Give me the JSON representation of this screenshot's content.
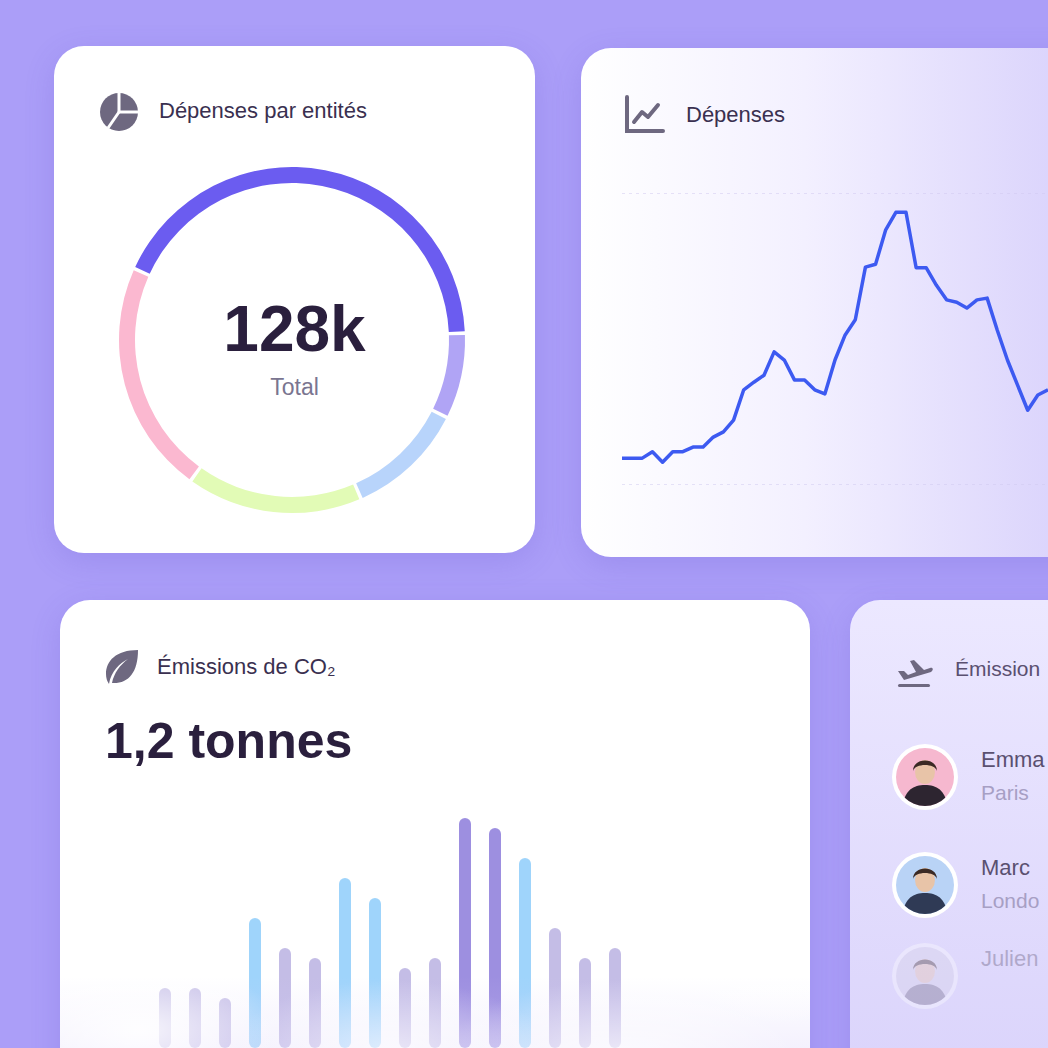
{
  "chart_data": [
    {
      "type": "pie",
      "title": "Dépenses par entités",
      "center_label": "128k",
      "center_sublabel": "Total",
      "values": [
        55,
        10,
        14,
        21,
        28
      ],
      "colors": [
        "#6b5cf0",
        "#b0a4f5",
        "#b8d4fb",
        "#e2fbb6",
        "#fbb8d0"
      ]
    },
    {
      "type": "line",
      "title": "Dépenses",
      "categories": [
        null,
        null,
        null,
        null,
        null,
        null,
        null,
        null,
        null,
        null,
        null,
        null,
        null,
        null,
        null,
        null,
        null,
        null,
        null,
        null,
        null,
        null,
        null,
        null,
        null,
        null,
        null,
        null,
        null,
        null,
        null,
        null,
        null,
        null,
        null,
        null,
        null,
        null,
        null,
        null,
        null,
        null,
        null
      ],
      "values": [
        0.46,
        0.46,
        0.46,
        0.57,
        0.39,
        0.57,
        0.57,
        0.65,
        0.65,
        0.82,
        0.91,
        1.11,
        1.63,
        1.76,
        1.88,
        2.28,
        2.14,
        1.8,
        1.8,
        1.63,
        1.56,
        2.14,
        2.57,
        2.83,
        3.73,
        3.78,
        4.37,
        4.67,
        4.67,
        3.72,
        3.72,
        3.42,
        3.17,
        3.13,
        3.03,
        3.17,
        3.2,
        2.65,
        2.14,
        1.71,
        1.28,
        1.54,
        1.63
      ],
      "color": "#3d5af1",
      "ylim": [
        0,
        5
      ],
      "yticks": [
        0,
        1,
        2,
        3,
        4,
        5
      ],
      "grid": true,
      "tick_labels": false
    },
    {
      "type": "bar",
      "title": "Émissions de CO₂",
      "subtitle": "1,2 tonnes",
      "categories": [
        null,
        null,
        null,
        null,
        null,
        null,
        null,
        null,
        null,
        null,
        null,
        null,
        null,
        null,
        null,
        null
      ],
      "values": [
        6,
        6,
        5,
        13,
        10,
        9,
        17,
        15,
        8,
        9,
        23,
        22,
        19,
        12,
        9,
        10
      ],
      "colors": [
        "#c4bde6",
        "#c4bde6",
        "#c4bde6",
        "#9fd4fb",
        "#c4bde6",
        "#c4bde6",
        "#9fd4fb",
        "#9fd4fb",
        "#c4bde6",
        "#c4bde6",
        "#9d8fe0",
        "#9d8fe0",
        "#9fd4fb",
        "#c4bde6",
        "#c4bde6",
        "#c4bde6"
      ],
      "ylim": [
        0,
        25
      ],
      "yticks": [
        0,
        25
      ],
      "tick_labels": false
    }
  ],
  "list_card": {
    "title": "Émission",
    "rows": [
      {
        "name": "Emma",
        "city": "Paris"
      },
      {
        "name": "Marc",
        "city": "Londo"
      },
      {
        "name": "Julien"
      }
    ]
  }
}
